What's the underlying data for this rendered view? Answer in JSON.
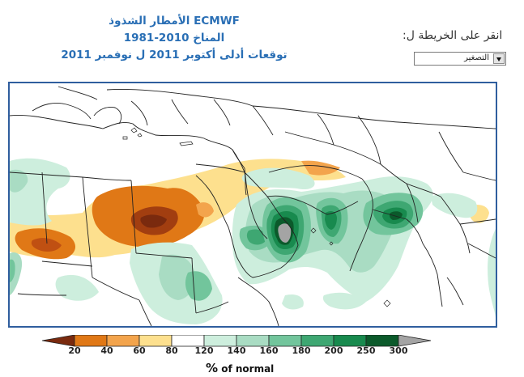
{
  "title": {
    "line1": "الأمطار الشذوذ ECMWF",
    "line2": "المناخ 2010-1981",
    "line3": "توقعات أدلى أكتوبر 2011 ل نوفمبر 2011"
  },
  "zoom": {
    "prompt": "انقر على الخريطة ل:",
    "selected": "التصغير"
  },
  "legend": {
    "units_symbol": "%",
    "units_text": "of normal",
    "labels": [
      "20",
      "40",
      "60",
      "80",
      "120",
      "140",
      "160",
      "180",
      "200",
      "250",
      "300"
    ],
    "colors": [
      "#7a2a0e",
      "#e07816",
      "#f3a44c",
      "#fde08e",
      "#ffffff",
      "#cdeedd",
      "#a9dcc3",
      "#72c59c",
      "#3ea772",
      "#188a4e",
      "#0b5a2b",
      "#a4a4a4"
    ]
  },
  "map": {
    "region": "East Africa / Middle East / South Asia",
    "palette": {
      "dark_brown": "#7a2a0e",
      "orange": "#e07816",
      "light_orange": "#f3a44c",
      "yellow": "#fde08e",
      "pale_green": "#cdeedd",
      "light_green": "#a9dcc3",
      "mid_green": "#72c59c",
      "green": "#3ea772",
      "dark_green": "#188a4e",
      "darkest_green": "#0b5a2b",
      "gray": "#a4a4a4",
      "border_line": "#222222"
    }
  }
}
